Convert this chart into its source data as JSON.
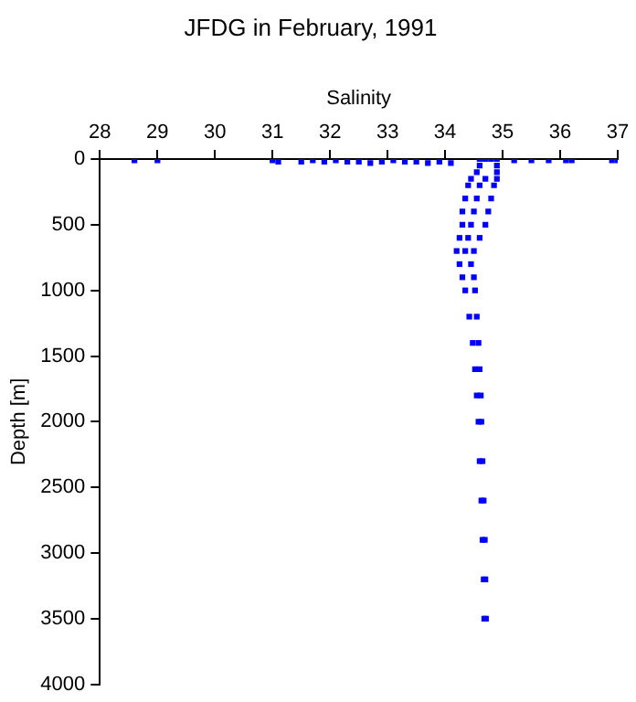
{
  "chart_data": {
    "type": "scatter",
    "title": "JFDG in February, 1991",
    "xlabel": "Salinity",
    "ylabel": "Depth [m]",
    "xlim": [
      28,
      37
    ],
    "xticks": [
      28,
      29,
      30,
      31,
      32,
      33,
      34,
      35,
      36,
      37
    ],
    "ylim": [
      4000,
      0
    ],
    "yticks": [
      0,
      500,
      1000,
      1500,
      2000,
      2500,
      3000,
      3500,
      4000
    ],
    "grid": false,
    "legend": false,
    "marker": "square",
    "series": [
      {
        "color": "#0000ff",
        "x": [
          28.6,
          29.0,
          31.0,
          31.1,
          31.5,
          31.7,
          31.9,
          32.1,
          32.3,
          32.5,
          32.7,
          32.9,
          33.1,
          33.3,
          33.5,
          33.7,
          33.9,
          34.1,
          35.2,
          35.5,
          35.8,
          36.1,
          36.2,
          36.9,
          37.0,
          34.6,
          34.7,
          34.8,
          34.9,
          34.6,
          34.9,
          34.55,
          34.9,
          34.45,
          34.7,
          34.9,
          34.4,
          34.6,
          34.85,
          34.35,
          34.55,
          34.8,
          34.3,
          34.5,
          34.75,
          34.3,
          34.45,
          34.7,
          34.25,
          34.4,
          34.6,
          34.2,
          34.35,
          34.5,
          34.25,
          34.45,
          34.3,
          34.5,
          34.35,
          34.52,
          34.42,
          34.55,
          34.48,
          34.58,
          34.52,
          34.6,
          34.55,
          34.62,
          34.58,
          34.63,
          34.6,
          34.65,
          34.63,
          34.67,
          34.65,
          34.69,
          34.67,
          34.7,
          34.68,
          34.71
        ],
        "values": [
          10,
          10,
          10,
          20,
          20,
          10,
          20,
          10,
          20,
          20,
          30,
          20,
          10,
          20,
          20,
          30,
          20,
          30,
          10,
          10,
          10,
          10,
          10,
          10,
          10,
          0,
          0,
          0,
          0,
          50,
          50,
          100,
          100,
          150,
          150,
          150,
          200,
          200,
          200,
          300,
          300,
          300,
          400,
          400,
          400,
          500,
          500,
          500,
          600,
          600,
          600,
          700,
          700,
          700,
          800,
          800,
          900,
          900,
          1000,
          1000,
          1200,
          1200,
          1400,
          1400,
          1600,
          1600,
          1800,
          1800,
          2000,
          2000,
          2300,
          2300,
          2600,
          2600,
          2900,
          2900,
          3200,
          3200,
          3500,
          3500
        ]
      }
    ]
  }
}
